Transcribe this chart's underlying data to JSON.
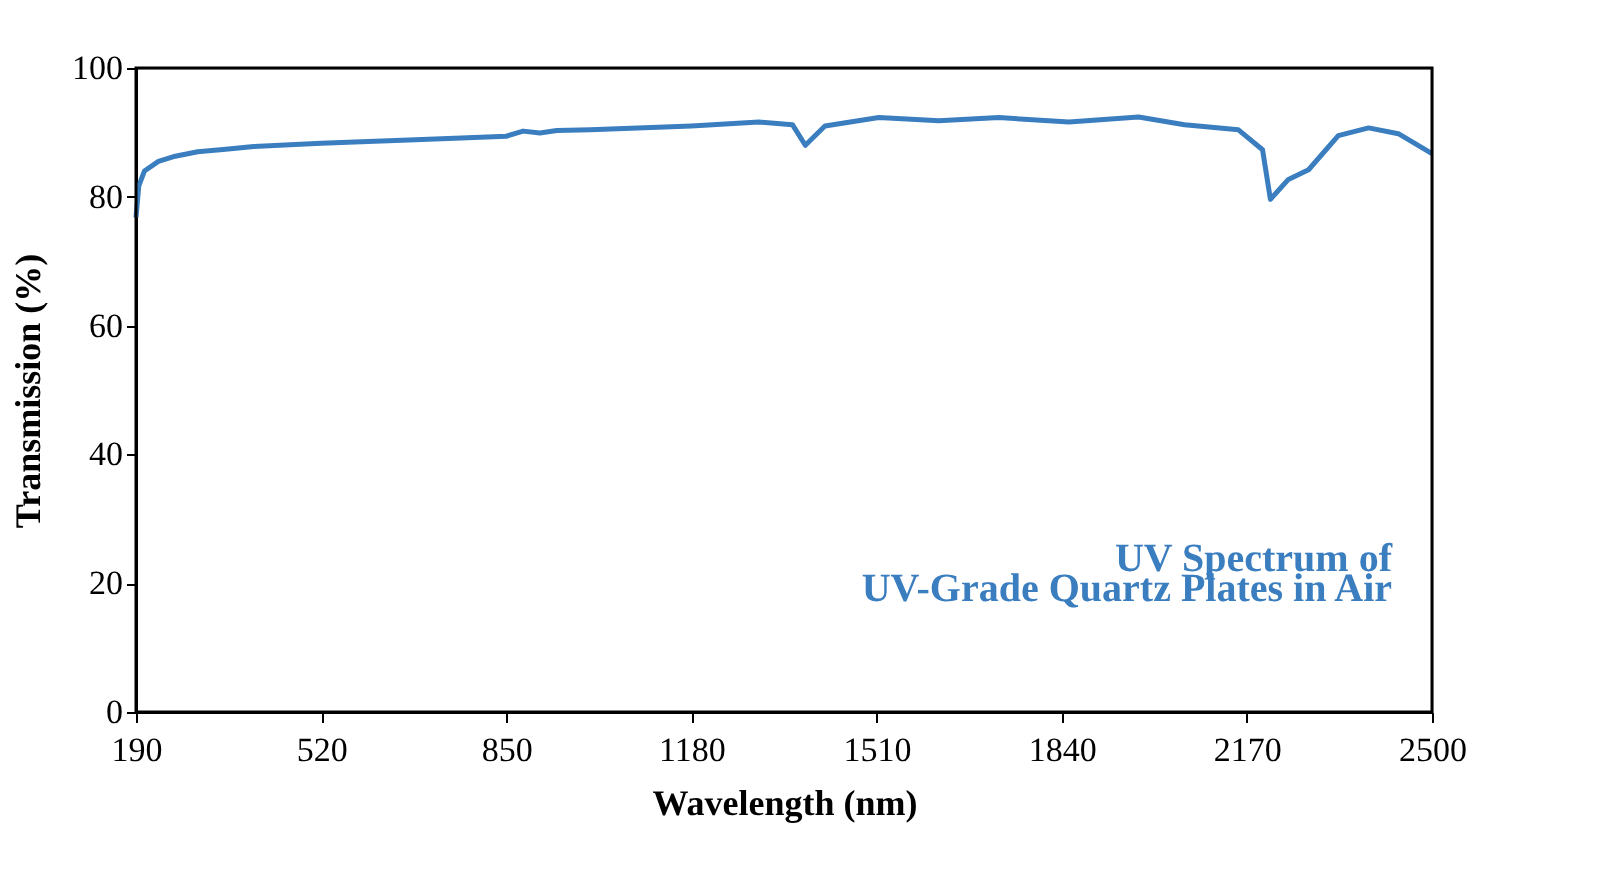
{
  "chart_data": {
    "type": "line",
    "xlabel": "Wavelength (nm)",
    "ylabel": "Transmission (%)",
    "annotations": [
      "UV Spectrum of",
      "UV-Grade Quartz Plates in Air"
    ],
    "x": [
      190,
      195,
      205,
      230,
      260,
      300,
      350,
      400,
      520,
      700,
      850,
      880,
      910,
      940,
      1000,
      1180,
      1300,
      1360,
      1383,
      1418,
      1514,
      1621,
      1728,
      1853,
      1977,
      2059,
      2155,
      2198,
      2212,
      2244,
      2280,
      2333,
      2387,
      2440,
      2500
    ],
    "series": [
      {
        "color": "#3a7ebf",
        "values": [
          76.8,
          81.7,
          84,
          85.5,
          86.3,
          87,
          87.4,
          87.8,
          88.3,
          88.9,
          89.4,
          90.2,
          89.9,
          90.3,
          90.4,
          91,
          91.6,
          91.2,
          88,
          91,
          92.3,
          91.8,
          92.3,
          91.6,
          92.4,
          91.2,
          90.4,
          87.3,
          79.6,
          82.7,
          84.2,
          89.5,
          90.7,
          89.8,
          86.7
        ]
      }
    ],
    "xlim": [
      190,
      2500
    ],
    "xticks": [
      190,
      520,
      850,
      1180,
      1510,
      1840,
      2170,
      2500
    ],
    "ylim": [
      0,
      100
    ],
    "yticks": [
      0,
      20,
      40,
      60,
      80,
      100
    ],
    "grid": false,
    "marker": "none",
    "line_style": "solid"
  }
}
